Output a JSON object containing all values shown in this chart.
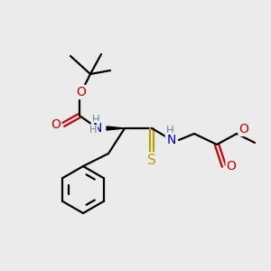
{
  "bg_color": "#ebebeb",
  "atom_colors": {
    "C": "#000000",
    "N": "#0000cc",
    "O": "#cc0000",
    "S": "#b8a000",
    "H": "#5a9090"
  },
  "bond_color": "#000000",
  "bond_width": 1.6,
  "figsize": [
    3.0,
    3.0
  ],
  "dpi": 100
}
